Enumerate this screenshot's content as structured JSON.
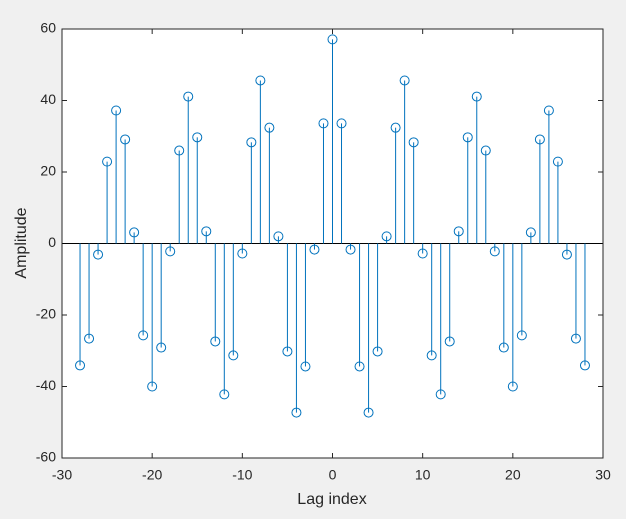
{
  "chart_data": {
    "type": "stem",
    "xlabel": "Lag index",
    "ylabel": "Amplitude",
    "x": [
      -28,
      -27,
      -26,
      -25,
      -24,
      -23,
      -22,
      -21,
      -20,
      -19,
      -18,
      -17,
      -16,
      -15,
      -14,
      -13,
      -12,
      -11,
      -10,
      -9,
      -8,
      -7,
      -6,
      -5,
      -4,
      -3,
      -2,
      -1,
      0,
      1,
      2,
      3,
      4,
      5,
      6,
      7,
      8,
      9,
      10,
      11,
      12,
      13,
      14,
      15,
      16,
      17,
      18,
      19,
      20,
      21,
      22,
      23,
      24,
      25,
      26,
      27,
      28
    ],
    "values": [
      -34.1,
      -26.6,
      -3.1,
      22.9,
      37.2,
      29.1,
      3.1,
      -25.7,
      -40.0,
      -29.1,
      -2.2,
      26.0,
      41.1,
      29.7,
      3.4,
      -27.4,
      -42.2,
      -31.3,
      -2.8,
      28.3,
      45.6,
      32.4,
      2.0,
      -30.2,
      -47.3,
      -34.4,
      -1.7,
      33.6,
      57.1,
      33.6,
      -1.7,
      -34.4,
      -47.3,
      -30.2,
      2.0,
      32.4,
      45.6,
      28.3,
      -2.8,
      -31.3,
      -42.2,
      -27.4,
      3.4,
      29.7,
      41.1,
      26.0,
      -2.2,
      -29.1,
      -40.0,
      -25.7,
      3.1,
      29.1,
      37.2,
      22.9,
      -3.1,
      -26.6,
      -34.1
    ],
    "color": "#0072bd",
    "xlim": [
      -30,
      30
    ],
    "xticks": [
      -30,
      -20,
      -10,
      0,
      10,
      20,
      30
    ],
    "ylim": [
      -60,
      60
    ],
    "yticks": [
      -60,
      -40,
      -20,
      0,
      20,
      40,
      60
    ],
    "grid": false
  }
}
